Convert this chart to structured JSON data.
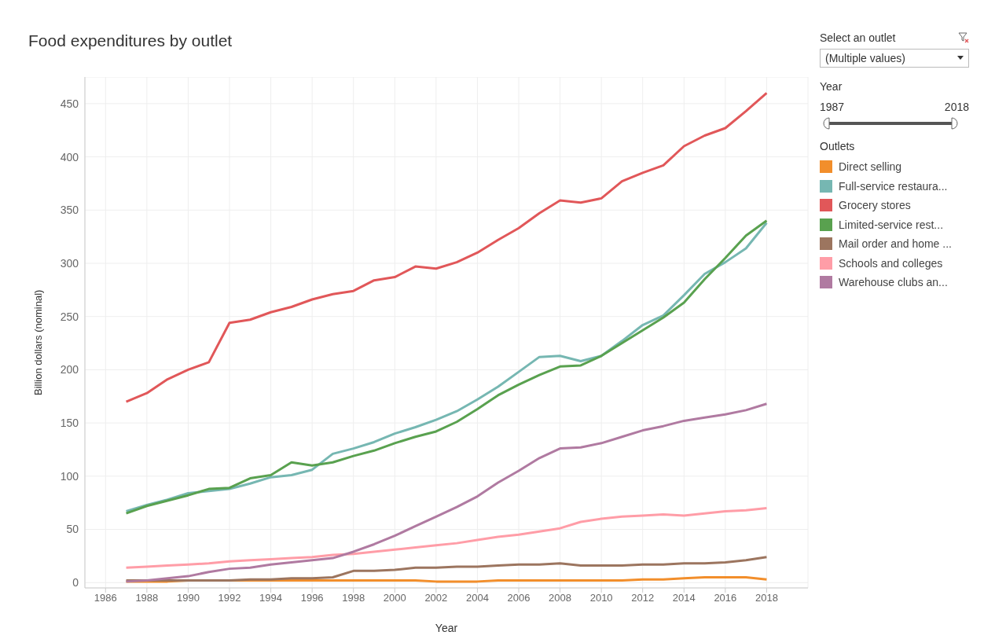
{
  "chart_data": {
    "type": "line",
    "title": "Food expenditures by outlet",
    "xlabel": "Year",
    "ylabel": "Billion dollars (nominal)",
    "legend_title": "Outlets",
    "annotations": [
      "Select an outlet",
      "(Multiple values)",
      "Year",
      "1987",
      "2018"
    ],
    "x": [
      1987,
      1988,
      1989,
      1990,
      1991,
      1992,
      1993,
      1994,
      1995,
      1996,
      1997,
      1998,
      1999,
      2000,
      2001,
      2002,
      2003,
      2004,
      2005,
      2006,
      2007,
      2008,
      2009,
      2010,
      2011,
      2012,
      2013,
      2014,
      2015,
      2016,
      2017,
      2018
    ],
    "series": [
      {
        "name": "Direct selling",
        "color": "#f28e2b",
        "values": [
          1,
          1,
          1,
          2,
          2,
          2,
          2,
          2,
          2,
          2,
          2,
          2,
          2,
          2,
          2,
          1,
          1,
          1,
          2,
          2,
          2,
          2,
          2,
          2,
          2,
          3,
          3,
          4,
          5,
          5,
          5,
          3
        ]
      },
      {
        "name": "Full-service restaura...",
        "color": "#76b7b2",
        "values": [
          67,
          73,
          78,
          84,
          86,
          88,
          93,
          99,
          101,
          106,
          121,
          126,
          132,
          140,
          146,
          153,
          161,
          172,
          184,
          198,
          212,
          213,
          208,
          213,
          227,
          242,
          251,
          270,
          290,
          301,
          314,
          338
        ]
      },
      {
        "name": "Grocery stores",
        "color": "#e15759",
        "values": [
          170,
          178,
          191,
          200,
          207,
          244,
          247,
          254,
          259,
          266,
          271,
          274,
          284,
          287,
          297,
          295,
          301,
          310,
          322,
          333,
          347,
          359,
          357,
          361,
          377,
          385,
          392,
          410,
          420,
          427,
          443,
          460
        ]
      },
      {
        "name": "Limited-service rest...",
        "color": "#59a14f",
        "values": [
          65,
          72,
          77,
          82,
          88,
          89,
          98,
          101,
          113,
          110,
          113,
          119,
          124,
          131,
          137,
          142,
          151,
          163,
          176,
          186,
          195,
          203,
          204,
          213,
          225,
          237,
          249,
          263,
          285,
          305,
          326,
          340
        ]
      },
      {
        "name": "Mail order and home ...",
        "color": "#9c755f",
        "values": [
          2,
          2,
          2,
          2,
          2,
          2,
          3,
          3,
          4,
          4,
          5,
          11,
          11,
          12,
          14,
          14,
          15,
          15,
          16,
          17,
          17,
          18,
          16,
          16,
          16,
          17,
          17,
          18,
          18,
          19,
          21,
          24
        ]
      },
      {
        "name": "Schools and colleges",
        "color": "#ff9da7",
        "values": [
          14,
          15,
          16,
          17,
          18,
          20,
          21,
          22,
          23,
          24,
          26,
          27,
          29,
          31,
          33,
          35,
          37,
          40,
          43,
          45,
          48,
          51,
          57,
          60,
          62,
          63,
          64,
          63,
          65,
          67,
          68,
          70
        ]
      },
      {
        "name": "Warehouse clubs an...",
        "color": "#b07aa1",
        "values": [
          1,
          2,
          4,
          6,
          10,
          13,
          14,
          17,
          19,
          21,
          23,
          29,
          36,
          44,
          53,
          62,
          71,
          81,
          94,
          105,
          117,
          126,
          127,
          131,
          137,
          143,
          147,
          152,
          155,
          158,
          162,
          168
        ]
      }
    ],
    "xlim": [
      1985,
      2020
    ],
    "xticks": [
      1986,
      1988,
      1990,
      1992,
      1994,
      1996,
      1998,
      2000,
      2002,
      2004,
      2006,
      2008,
      2010,
      2012,
      2014,
      2016,
      2018
    ],
    "ylim": [
      -5,
      475
    ],
    "yticks": [
      0,
      50,
      100,
      150,
      200,
      250,
      300,
      350,
      400,
      450
    ],
    "grid": true,
    "legend": "right",
    "marker": "none",
    "line_style": "solid"
  }
}
